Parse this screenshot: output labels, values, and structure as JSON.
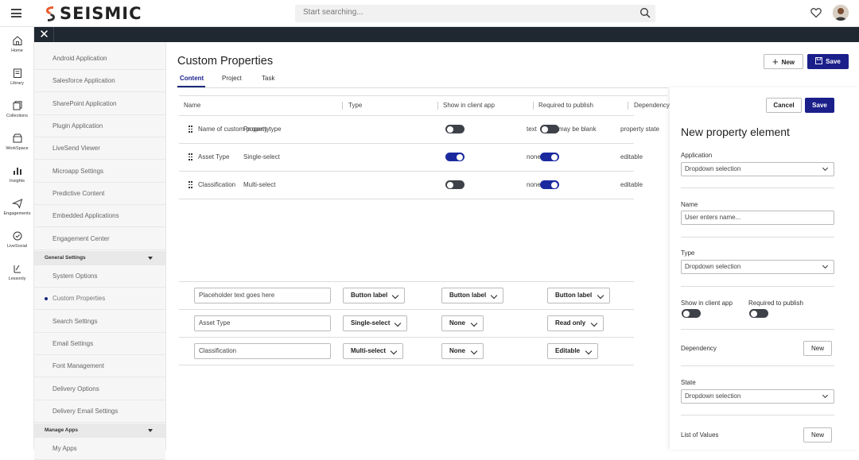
{
  "app": {
    "brand": "SEISMIC"
  },
  "search": {
    "placeholder": "Start searching..."
  },
  "rail": [
    {
      "label": "Home",
      "icon": "home-icon"
    },
    {
      "label": "Library",
      "icon": "library-icon"
    },
    {
      "label": "Collections",
      "icon": "collections-icon"
    },
    {
      "label": "WorkSpace",
      "icon": "workspace-icon"
    },
    {
      "label": "Insights",
      "icon": "insights-icon"
    },
    {
      "label": "Engagements",
      "icon": "engagements-icon"
    },
    {
      "label": "LiveSocial",
      "icon": "livesocial-icon"
    },
    {
      "label": "Lessonly",
      "icon": "lessonly-icon"
    }
  ],
  "settings_nav": {
    "items_top": [
      "Android Application",
      "Salesforce Application",
      "SharePoint Application",
      "Plugin Application",
      "LiveSend Viewer",
      "Microapp Settings",
      "Predictive Content",
      "Embedded Applications",
      "Engagement Center"
    ],
    "general_header": "General Settings",
    "items_general": [
      "System Options",
      "Custom Properties",
      "Search Settings",
      "Email Settings",
      "Font Management",
      "Delivery Options",
      "Delivery Email Settings"
    ],
    "manage_header": "Manage Apps",
    "items_manage": [
      "My Apps"
    ]
  },
  "main": {
    "title": "Custom Properties",
    "tabs": [
      "Content",
      "Project",
      "Task"
    ],
    "new_label": "New",
    "save_label": "Save",
    "columns": [
      "Name",
      "Type",
      "Show in client app",
      "Required to publish",
      "Dependency"
    ],
    "rows": [
      {
        "name": "Name of custom property",
        "type": "Property type",
        "show": false,
        "req_text": "text",
        "required": false,
        "req_after": "may be blank",
        "dependency": "property state"
      },
      {
        "name": "Asset Type",
        "type": "Single-select",
        "show": true,
        "req_text": "none",
        "required": true,
        "req_after": "",
        "dependency": "editable"
      },
      {
        "name": "Classification",
        "type": "Multi-select",
        "show": false,
        "req_text": "none",
        "required": true,
        "req_after": "",
        "dependency": "editable"
      }
    ],
    "edit_rows": [
      {
        "name": "Placeholder text goes here",
        "type": "Button label",
        "show": "Button label",
        "dependency": "Button label"
      },
      {
        "name": "Asset Type",
        "type": "Single-select",
        "show": "None",
        "dependency": "Read only"
      },
      {
        "name": "Classification",
        "type": "Multi-select",
        "show": "None",
        "dependency": "Editable"
      }
    ]
  },
  "panel": {
    "cancel_label": "Cancel",
    "save_label": "Save",
    "title": "New property element",
    "application_label": "Application",
    "application_value": "Dropdown selection",
    "name_label": "Name",
    "name_placeholder": "User enters name...",
    "type_label": "Type",
    "type_value": "Dropdown selection",
    "show_label": "Show in client app",
    "required_label": "Required to publish",
    "show_on": false,
    "required_on": false,
    "dependency_label": "Dependency",
    "dependency_button": "New",
    "state_label": "State",
    "state_value": "Dropdown selection",
    "lov_label": "List of Values",
    "lov_button": "New"
  },
  "colors": {
    "accent": "#1a1f8a",
    "toggle_on": "#1a2a9e",
    "toggle_off": "#3e4148",
    "dark_strip": "#1f2731"
  }
}
